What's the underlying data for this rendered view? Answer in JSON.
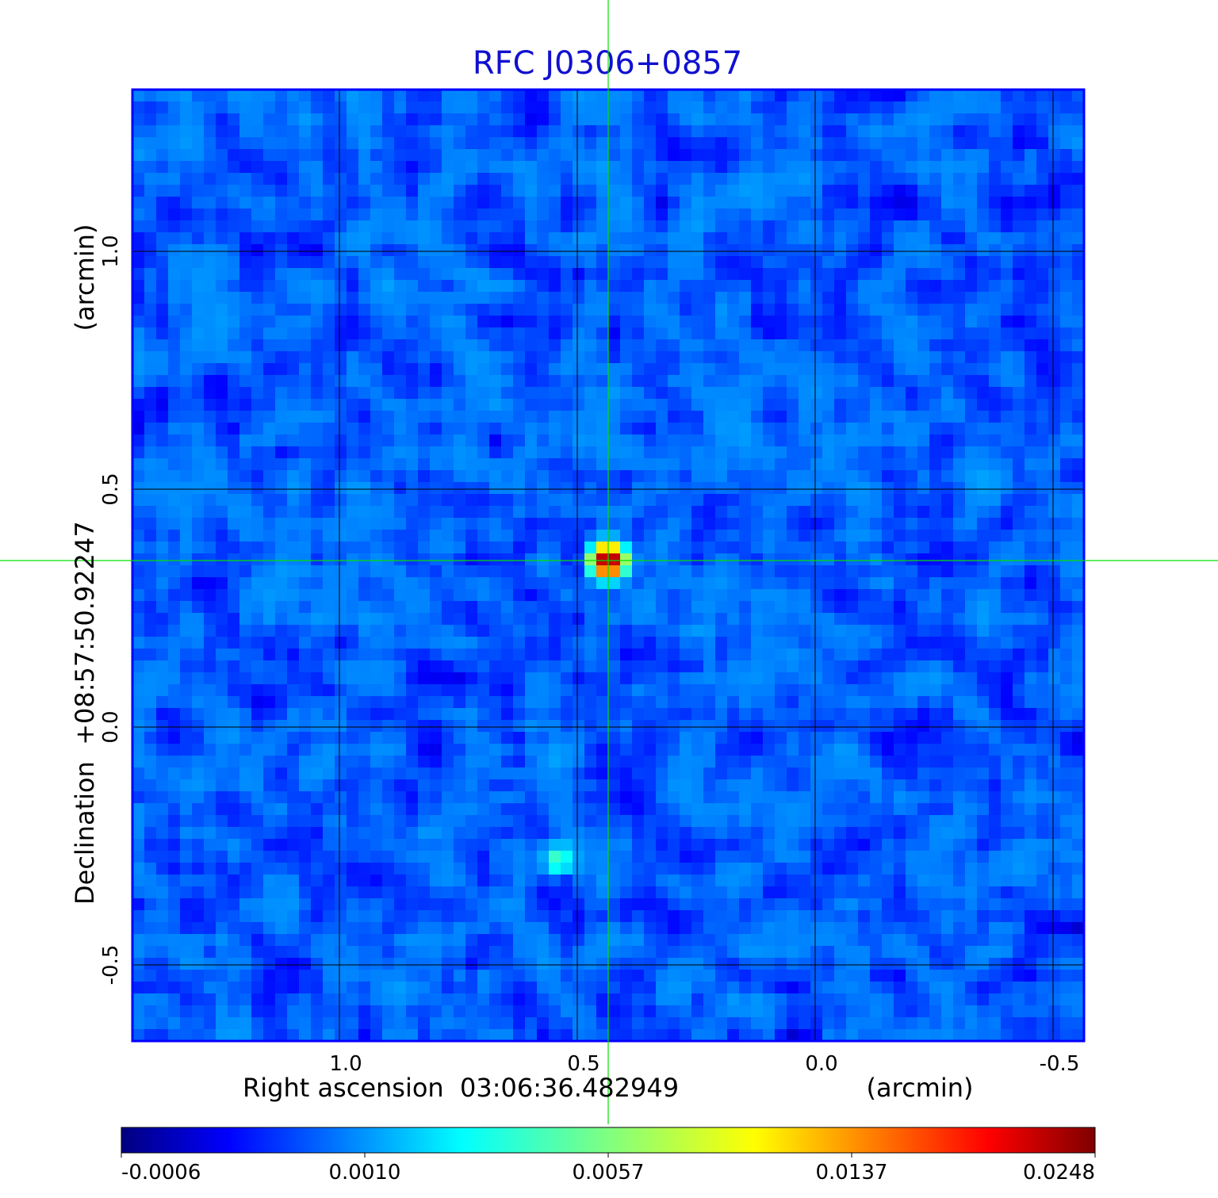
{
  "chart_data": {
    "type": "heatmap",
    "title": "RFC J0306+0857",
    "xlabel": "Right ascension  03:06:36.482949",
    "xunit": "(arcmin)",
    "ylabel": "Declination  +08:57:50.92247",
    "yunit": "(arcmin)",
    "x_ticks": [
      "1.0",
      "0.5",
      "0.0",
      "-0.5"
    ],
    "x_tick_values": [
      1.0,
      0.5,
      0.0,
      -0.5
    ],
    "y_ticks": [
      "1.0",
      "0.5",
      "0.0",
      "-0.5"
    ],
    "y_tick_values": [
      1.0,
      0.5,
      0.0,
      -0.5
    ],
    "xlim": [
      1.435,
      -0.565
    ],
    "ylim": [
      -0.66,
      1.34
    ],
    "grid": true,
    "crosshair": {
      "x": 0.435,
      "y": 0.35,
      "color": "#00e000"
    },
    "sources": [
      {
        "x": 0.435,
        "y": 0.35,
        "peak": 0.0248
      },
      {
        "x": 0.54,
        "y": -0.28,
        "peak": 0.004
      }
    ],
    "noise_level": 0.0008,
    "colormap": "jet",
    "colorbar": {
      "tick_labels": [
        "-0.0006",
        "0.0010",
        "0.0057",
        "0.0137",
        "0.0248"
      ],
      "tick_values": [
        -0.0006,
        0.001,
        0.0057,
        0.0137,
        0.0248
      ]
    },
    "colors": {
      "title": "#1010d0",
      "frame": "#0000ff",
      "grid": "#000000"
    }
  }
}
